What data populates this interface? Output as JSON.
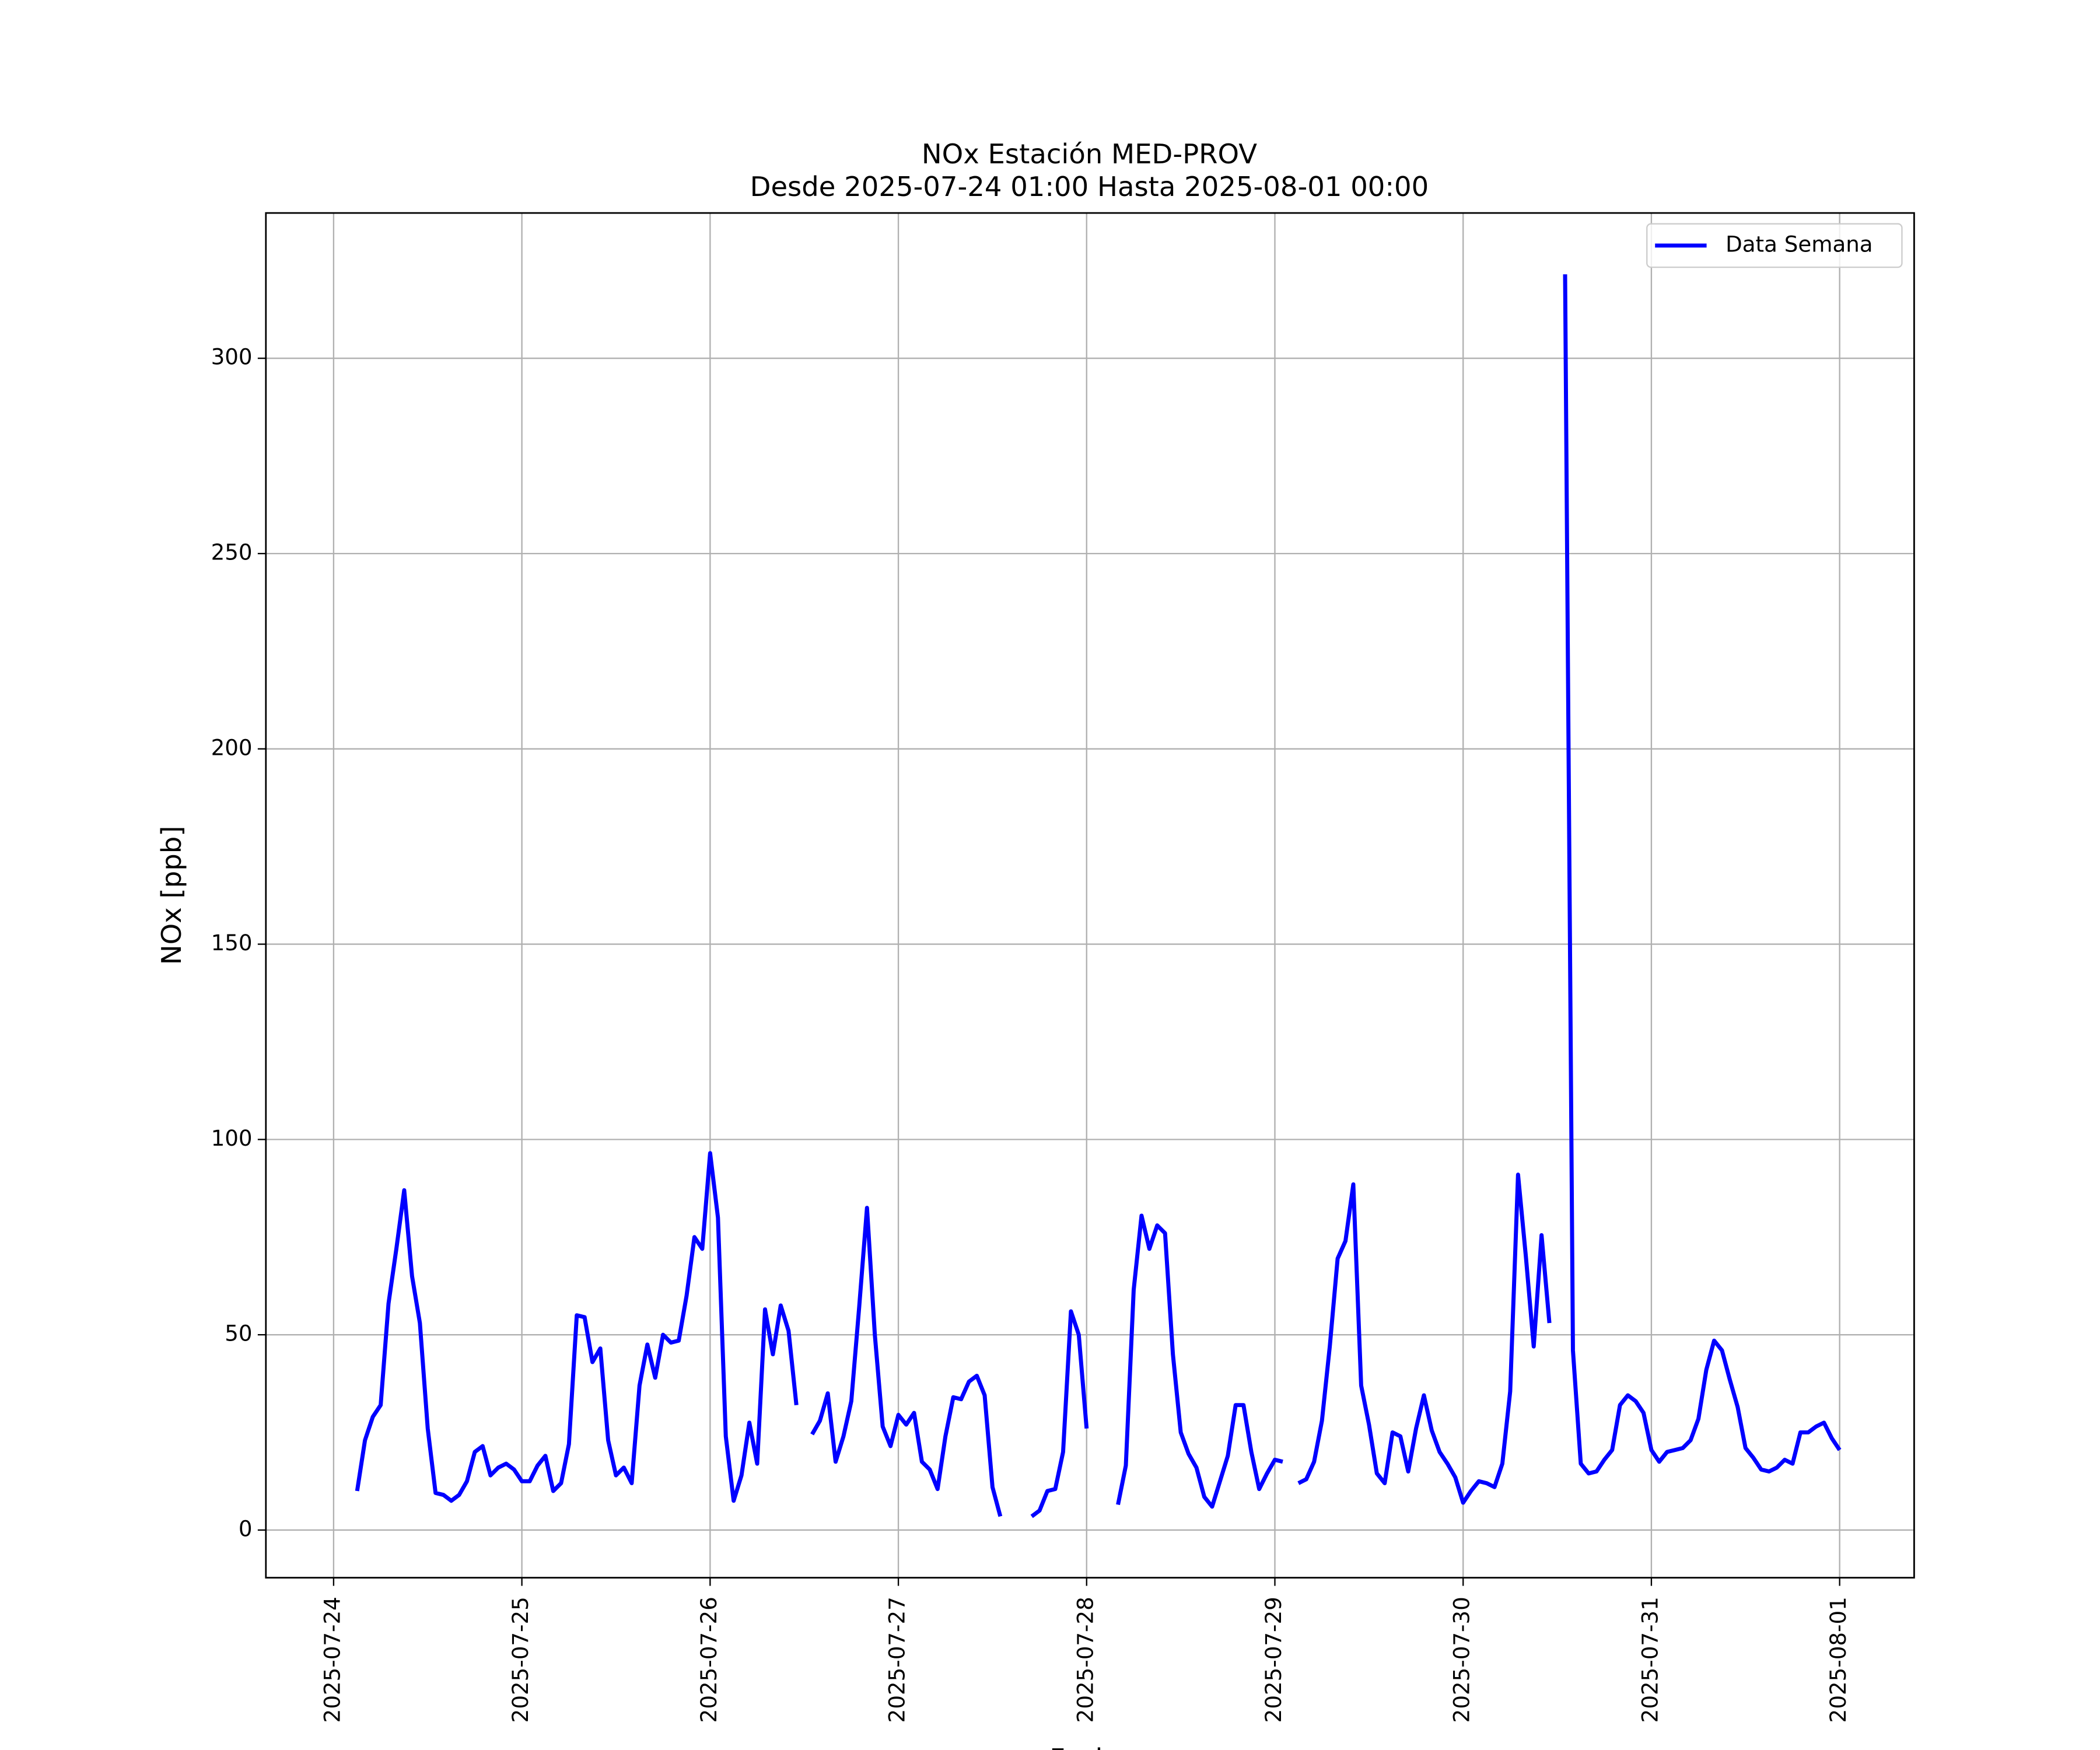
{
  "chart_data": {
    "type": "line",
    "title": "NOx Estación MED-PROV",
    "subtitle": "Desde 2025-07-24 01:00 Hasta 2025-08-01 00:00",
    "x_label": "Fecha",
    "y_label": "NOx [ppb]",
    "x": [
      "2025-07-24 03:00",
      "2025-07-24 04:00",
      "2025-07-24 05:00",
      "2025-07-24 06:00",
      "2025-07-24 07:00",
      "2025-07-24 08:00",
      "2025-07-24 09:00",
      "2025-07-24 10:00",
      "2025-07-24 11:00",
      "2025-07-24 12:00",
      "2025-07-24 13:00",
      "2025-07-24 14:00",
      "2025-07-24 15:00",
      "2025-07-24 16:00",
      "2025-07-24 17:00",
      "2025-07-24 18:00",
      "2025-07-24 19:00",
      "2025-07-24 20:00",
      "2025-07-24 21:00",
      "2025-07-24 22:00",
      "2025-07-24 23:00",
      "2025-07-25 00:00",
      "2025-07-25 01:00",
      "2025-07-25 02:00",
      "2025-07-25 03:00",
      "2025-07-25 04:00",
      "2025-07-25 05:00",
      "2025-07-25 06:00",
      "2025-07-25 07:00",
      "2025-07-25 08:00",
      "2025-07-25 09:00",
      "2025-07-25 10:00",
      "2025-07-25 11:00",
      "2025-07-25 12:00",
      "2025-07-25 13:00",
      "2025-07-25 14:00",
      "2025-07-25 15:00",
      "2025-07-25 16:00",
      "2025-07-25 17:00",
      "2025-07-25 18:00",
      "2025-07-25 19:00",
      "2025-07-25 20:00",
      "2025-07-25 21:00",
      "2025-07-25 22:00",
      "2025-07-25 23:00",
      "2025-07-26 00:00",
      "2025-07-26 01:00",
      "2025-07-26 02:00",
      "2025-07-26 03:00",
      "2025-07-26 04:00",
      "2025-07-26 05:00",
      "2025-07-26 06:00",
      "2025-07-26 07:00",
      "2025-07-26 08:00",
      "2025-07-26 09:00",
      "2025-07-26 10:00",
      "2025-07-26 11:00",
      "2025-07-26 12:00",
      "2025-07-26 13:00",
      "2025-07-26 14:00",
      "2025-07-26 15:00",
      "2025-07-26 16:00",
      "2025-07-26 17:00",
      "2025-07-26 18:00",
      "2025-07-26 19:00",
      "2025-07-26 20:00",
      "2025-07-26 21:00",
      "2025-07-26 22:00",
      "2025-07-26 23:00",
      "2025-07-27 00:00",
      "2025-07-27 01:00",
      "2025-07-27 02:00",
      "2025-07-27 03:00",
      "2025-07-27 04:00",
      "2025-07-27 05:00",
      "2025-07-27 06:00",
      "2025-07-27 07:00",
      "2025-07-27 08:00",
      "2025-07-27 09:00",
      "2025-07-27 10:00",
      "2025-07-27 11:00",
      "2025-07-27 12:00",
      "2025-07-27 13:00",
      "2025-07-27 14:00",
      "2025-07-27 15:00",
      "2025-07-27 16:00",
      "2025-07-27 17:00",
      "2025-07-27 18:00",
      "2025-07-27 19:00",
      "2025-07-27 20:00",
      "2025-07-27 21:00",
      "2025-07-27 22:00",
      "2025-07-27 23:00",
      "2025-07-28 00:00",
      "2025-07-28 01:00",
      "2025-07-28 02:00",
      "2025-07-28 03:00",
      "2025-07-28 04:00",
      "2025-07-28 05:00",
      "2025-07-28 06:00",
      "2025-07-28 07:00",
      "2025-07-28 08:00",
      "2025-07-28 09:00",
      "2025-07-28 10:00",
      "2025-07-28 11:00",
      "2025-07-28 12:00",
      "2025-07-28 13:00",
      "2025-07-28 14:00",
      "2025-07-28 15:00",
      "2025-07-28 16:00",
      "2025-07-28 17:00",
      "2025-07-28 18:00",
      "2025-07-28 19:00",
      "2025-07-28 20:00",
      "2025-07-28 21:00",
      "2025-07-28 22:00",
      "2025-07-28 23:00",
      "2025-07-29 00:00",
      "2025-07-29 01:00",
      "2025-07-29 02:00",
      "2025-07-29 03:00",
      "2025-07-29 04:00",
      "2025-07-29 05:00",
      "2025-07-29 06:00",
      "2025-07-29 07:00",
      "2025-07-29 08:00",
      "2025-07-29 09:00",
      "2025-07-29 10:00",
      "2025-07-29 11:00",
      "2025-07-29 12:00",
      "2025-07-29 13:00",
      "2025-07-29 14:00",
      "2025-07-29 15:00",
      "2025-07-29 16:00",
      "2025-07-29 17:00",
      "2025-07-29 18:00",
      "2025-07-29 19:00",
      "2025-07-29 20:00",
      "2025-07-29 21:00",
      "2025-07-29 22:00",
      "2025-07-29 23:00",
      "2025-07-30 00:00",
      "2025-07-30 01:00",
      "2025-07-30 02:00",
      "2025-07-30 03:00",
      "2025-07-30 04:00",
      "2025-07-30 05:00",
      "2025-07-30 06:00",
      "2025-07-30 07:00",
      "2025-07-30 08:00",
      "2025-07-30 09:00",
      "2025-07-30 10:00",
      "2025-07-30 11:00",
      "2025-07-30 12:00",
      "2025-07-30 13:00",
      "2025-07-30 14:00",
      "2025-07-30 15:00",
      "2025-07-30 16:00",
      "2025-07-30 17:00",
      "2025-07-30 18:00",
      "2025-07-30 19:00",
      "2025-07-30 20:00",
      "2025-07-30 21:00",
      "2025-07-30 22:00",
      "2025-07-30 23:00",
      "2025-07-31 00:00",
      "2025-07-31 01:00",
      "2025-07-31 02:00",
      "2025-07-31 03:00",
      "2025-07-31 04:00",
      "2025-07-31 05:00",
      "2025-07-31 06:00",
      "2025-07-31 07:00",
      "2025-07-31 08:00",
      "2025-07-31 09:00",
      "2025-07-31 10:00",
      "2025-07-31 11:00",
      "2025-07-31 12:00",
      "2025-07-31 13:00",
      "2025-07-31 14:00",
      "2025-07-31 15:00",
      "2025-07-31 16:00",
      "2025-07-31 17:00",
      "2025-07-31 18:00",
      "2025-07-31 19:00",
      "2025-07-31 20:00",
      "2025-07-31 21:00",
      "2025-07-31 22:00",
      "2025-07-31 23:00",
      "2025-08-01 00:00"
    ],
    "series": [
      {
        "name": "Data Semana",
        "color": "#0000ff",
        "values": [
          10,
          23,
          29,
          32,
          58,
          72,
          87,
          65,
          53,
          26,
          9.5,
          9,
          7.5,
          9,
          12.5,
          20,
          21.5,
          14,
          16,
          17,
          15.5,
          12.5,
          12.5,
          16.5,
          19,
          10,
          12,
          22,
          55,
          54.5,
          43,
          46.5,
          23,
          14,
          16,
          12,
          37,
          47.5,
          39,
          50,
          48,
          48.5,
          60,
          75,
          72,
          96.5,
          80,
          24,
          7.5,
          14,
          27.5,
          17,
          56.5,
          45,
          57.5,
          51,
          32,
          null,
          24.5,
          28,
          35,
          17.5,
          24,
          33,
          57,
          82.5,
          50,
          26.5,
          21.5,
          29.5,
          27,
          30,
          17.5,
          15.5,
          10.5,
          24,
          34,
          33.5,
          38,
          39.5,
          34.5,
          11,
          3.5,
          null,
          null,
          null,
          3.5,
          5,
          10,
          10.5,
          20,
          56,
          50,
          26,
          null,
          null,
          null,
          6.5,
          16.5,
          61.5,
          80.5,
          72,
          78,
          76,
          45,
          25,
          19.5,
          16,
          8.5,
          6,
          12.5,
          19,
          32,
          32,
          20,
          10.5,
          14.5,
          18,
          17.5,
          null,
          12,
          13,
          17.5,
          28,
          47,
          69.5,
          74,
          88.5,
          37,
          27,
          14.5,
          12,
          25,
          24,
          15,
          26,
          34.5,
          25.5,
          20,
          17,
          13.5,
          7,
          10,
          12.5,
          12,
          11,
          17,
          35.5,
          91,
          70,
          47,
          75.5,
          53,
          null,
          321.5,
          46,
          17,
          14.5,
          15,
          18,
          20.5,
          32,
          34.5,
          33,
          30,
          20.5,
          17.5,
          20,
          20.5,
          21,
          23,
          28.5,
          41,
          48.5,
          46,
          38.5,
          31.5,
          21,
          18.5,
          15.5,
          15,
          16,
          18,
          17,
          25,
          25,
          26.5,
          27.5,
          23.5,
          20.5
        ]
      }
    ],
    "xlim": [
      "2025-07-23 15:22",
      "2025-08-01 09:30"
    ],
    "xticks": [
      "2025-07-24",
      "2025-07-25",
      "2025-07-26",
      "2025-07-27",
      "2025-07-28",
      "2025-07-29",
      "2025-07-30",
      "2025-07-31",
      "2025-08-01"
    ],
    "ylim": [
      -12.2,
      337.2
    ],
    "yticks": [
      0,
      50,
      100,
      150,
      200,
      250,
      300
    ],
    "grid": true,
    "legend": "upper right"
  }
}
